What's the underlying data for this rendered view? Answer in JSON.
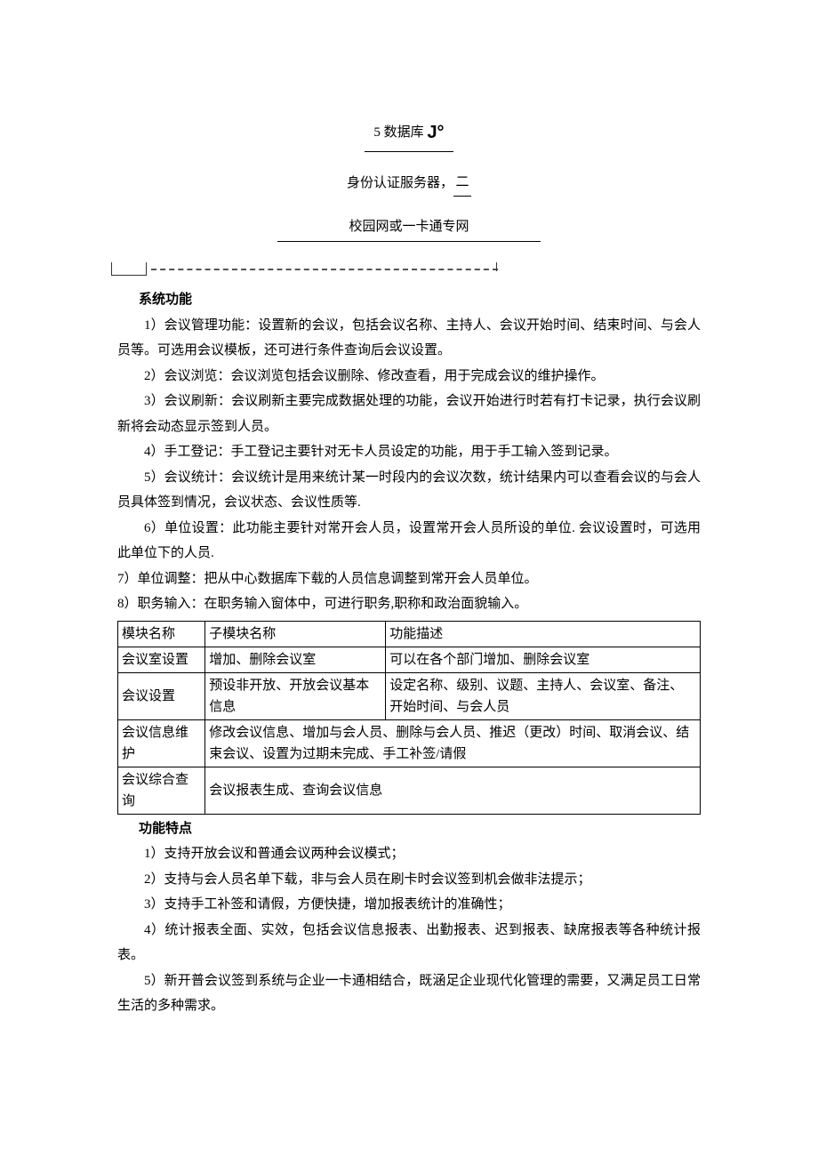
{
  "header": {
    "db_prefix": "5",
    "db_text": "数据库",
    "db_suffix": "J°",
    "server_text": "身份认证服务器，",
    "server_suffix": "二",
    "network_text": "校园网或一卡通专网"
  },
  "section1": {
    "title": "系统功能",
    "items": [
      "1）会议管理功能：设置新的会议，包括会议名称、主持人、会议开始时间、结束时间、与会人员等。可选用会议模板，还可进行条件查询后会议设置。",
      "2）会议浏览：会议浏览包括会议删除、修改查看，用于完成会议的维护操作。",
      "3）会议刷新：会议刷新主要完成数据处理的功能，会议开始进行时若有打卡记录，执行会议刷新将会动态显示签到人员。",
      "4）手工登记：手工登记主要针对无卡人员设定的功能，用于手工输入签到记录。",
      "5）会议统计：会议统计是用来统计某一时段内的会议次数，统计结果内可以查看会议的与会人员具体签到情况，会议状态、会议性质等.",
      "6）单位设置：此功能主要针对常开会人员，设置常开会人员所设的单位. 会议设置时，可选用此单位下的人员.",
      "7）单位调整：把从中心数据库下载的人员信息调整到常开会人员单位。",
      "8）职务输入：在职务输入窗体中，可进行职务,职称和政治面貌输入。"
    ]
  },
  "table": {
    "header": [
      "模块名称",
      "子模块名称",
      "功能描述"
    ],
    "rows": [
      [
        "会议室设置",
        "增加、删除会议室",
        "可以在各个部门增加、删除会议室"
      ],
      [
        "会议设置",
        "预设非开放、开放会议基本信息",
        "设定名称、级别、议题、主持人、会议室、备注、开始时间、与会人员"
      ],
      [
        "会议信息维护",
        "修改会议信息、增加与会人员、删除与会人员、推迟（更改）时间、取消会议、结束会议、设置为过期未完成、手工补签/请假",
        ""
      ],
      [
        "会议综合查询",
        "会议报表生成、查询会议信息",
        ""
      ]
    ],
    "merge_row3": true,
    "merge_row4": true
  },
  "section2": {
    "title": "功能特点",
    "items": [
      "1）支持开放会议和普通会议两种会议模式；",
      "2）支持与会人员名单下载，非与会人员在刷卡时会议签到机会做非法提示；",
      "3）支持手工补签和请假，方便快捷，增加报表统计的准确性；",
      "4）统计报表全面、实效，包括会议信息报表、出勤报表、迟到报表、缺席报表等各种统计报表。",
      "5）新开普会议签到系统与企业一卡通相结合，既涵足企业现代化管理的需要，又满足员工日常生活的多种需求。"
    ]
  }
}
